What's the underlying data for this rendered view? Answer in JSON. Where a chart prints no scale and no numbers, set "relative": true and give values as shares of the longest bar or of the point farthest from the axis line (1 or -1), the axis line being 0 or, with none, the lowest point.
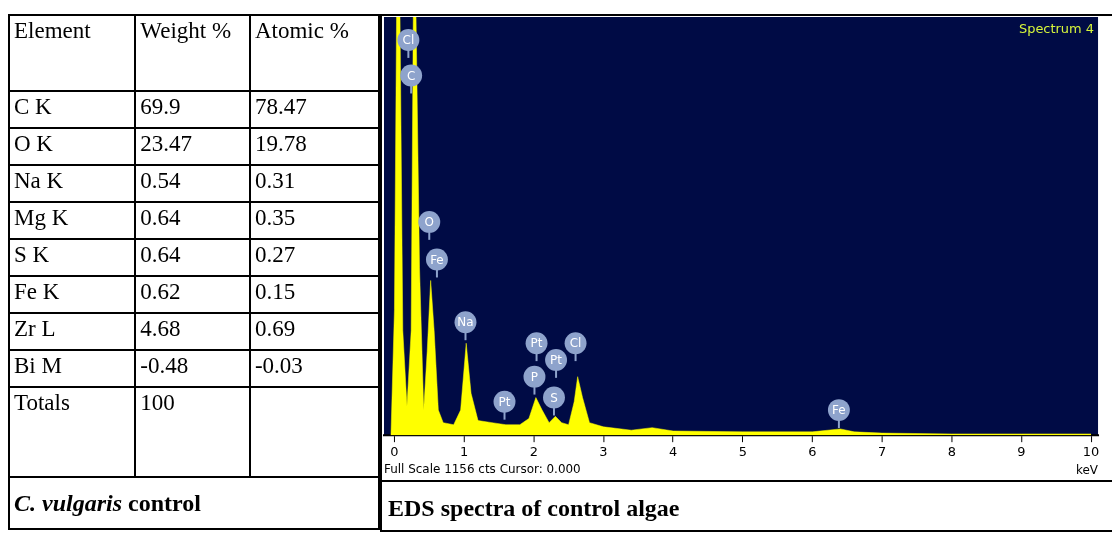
{
  "chart_data": [
    {
      "type": "other",
      "title": "C. vulgaris control",
      "annotations": [
        "Element",
        "Weight %",
        "Atomic %",
        "C K",
        "69.9",
        "78.47",
        "O K",
        "23.47",
        "19.78",
        "Na K",
        "0.54",
        "0.31",
        "Mg K",
        "0.64",
        "0.35",
        "S K",
        "0.64",
        "0.27",
        "Fe K",
        "0.62",
        "0.15",
        "Zr L",
        "4.68",
        "0.69",
        "Bi M",
        "-0.48",
        "-0.03",
        "Totals",
        "100"
      ]
    },
    {
      "type": "area",
      "title": "EDS spectra of control algae",
      "xlabel": "keV",
      "relative": true,
      "color": "#ffff00",
      "xlim": [
        -0.15,
        10.1
      ],
      "xticks": [
        0,
        1,
        2,
        3,
        4,
        5,
        6,
        7,
        8,
        9,
        10
      ],
      "x": [
        -0.05,
        0.0,
        0.03,
        0.08,
        0.12,
        0.18,
        0.24,
        0.27,
        0.31,
        0.36,
        0.42,
        0.47,
        0.52,
        0.57,
        0.63,
        0.7,
        0.85,
        0.95,
        1.03,
        1.1,
        1.2,
        1.4,
        1.6,
        1.8,
        1.93,
        2.03,
        2.12,
        2.22,
        2.31,
        2.4,
        2.5,
        2.58,
        2.63,
        2.7,
        2.8,
        3.0,
        3.4,
        3.7,
        4.0,
        5.0,
        6.0,
        6.4,
        6.6,
        7.0,
        8.0,
        9.0,
        10.0
      ],
      "values": [
        0,
        0.3,
        1,
        1,
        0.25,
        0.07,
        0.25,
        1,
        1,
        0.4,
        0.06,
        0.2,
        0.37,
        0.25,
        0.06,
        0.03,
        0.025,
        0.06,
        0.22,
        0.1,
        0.035,
        0.03,
        0.025,
        0.025,
        0.04,
        0.09,
        0.06,
        0.03,
        0.045,
        0.03,
        0.025,
        0.08,
        0.14,
        0.09,
        0.03,
        0.02,
        0.012,
        0.018,
        0.01,
        0.008,
        0.008,
        0.015,
        0.008,
        0.005,
        0.003,
        0.003,
        0.003
      ],
      "annotations": [
        "Spectrum 4",
        "Full Scale 1156 cts Cursor: 0.000",
        {
          "text": "Cl",
          "x": 0.2,
          "y": 0.945
        },
        {
          "text": "C",
          "x": 0.24,
          "y": 0.86
        },
        {
          "text": "O",
          "x": 0.5,
          "y": 0.51
        },
        {
          "text": "Fe",
          "x": 0.61,
          "y": 0.42
        },
        {
          "text": "Na",
          "x": 1.02,
          "y": 0.27
        },
        {
          "text": "Pt",
          "x": 1.58,
          "y": 0.08
        },
        {
          "text": "Pt",
          "x": 2.04,
          "y": 0.22
        },
        {
          "text": "P",
          "x": 2.01,
          "y": 0.14
        },
        {
          "text": "Pt",
          "x": 2.32,
          "y": 0.18
        },
        {
          "text": "S",
          "x": 2.29,
          "y": 0.09
        },
        {
          "text": "Cl",
          "x": 2.6,
          "y": 0.22
        },
        {
          "text": "Fe",
          "x": 6.38,
          "y": 0.06
        }
      ]
    }
  ]
}
